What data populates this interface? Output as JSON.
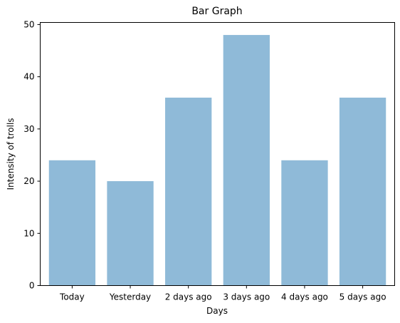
{
  "chart_data": {
    "type": "bar",
    "title": "Bar Graph",
    "xlabel": "Days",
    "ylabel": "Intensity of trolls",
    "categories": [
      "Today",
      "Yesterday",
      "2 days ago",
      "3 days ago",
      "4 days ago",
      "5 days ago"
    ],
    "values": [
      24,
      20,
      36,
      48,
      24,
      36
    ],
    "ylim": [
      0,
      50.4
    ],
    "yticks": [
      0,
      10,
      20,
      30,
      40,
      50
    ],
    "grid": false,
    "bar_color": "#8fbad8"
  }
}
